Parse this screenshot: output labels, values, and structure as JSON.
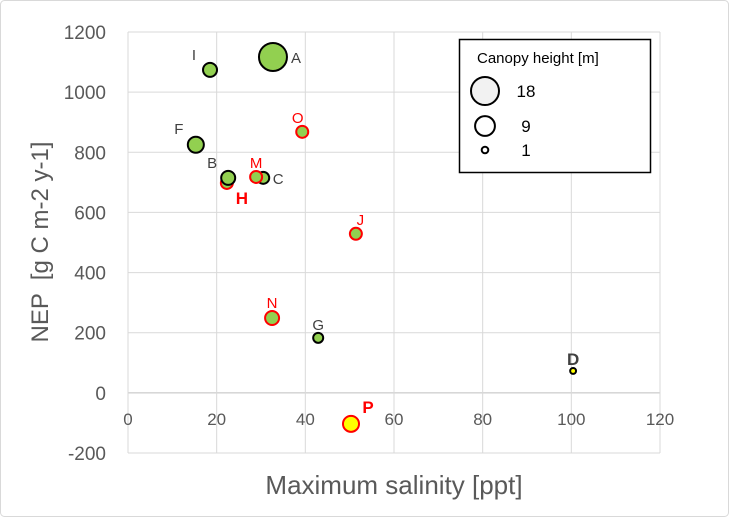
{
  "chart_data": {
    "type": "scatter",
    "subtype": "bubble",
    "xlabel": "Maximum salinity [ppt]",
    "ylabel": "NEP  [g C m-2 y-1]",
    "xlim": [
      0,
      120
    ],
    "ylim": [
      -200,
      1200
    ],
    "xticks": [
      0,
      20,
      40,
      60,
      80,
      100,
      120
    ],
    "yticks": [
      -200,
      0,
      200,
      400,
      600,
      800,
      1000,
      1200
    ],
    "grid": true,
    "legend": {
      "title": "Canopy height [m]",
      "placement": "top-right",
      "entries": [
        {
          "label": "18",
          "size": 18
        },
        {
          "label": "9",
          "size": 9
        },
        {
          "label": "1",
          "size": 1
        }
      ]
    },
    "points": [
      {
        "label": "A",
        "x": 32.7,
        "y": 1117,
        "size": 18,
        "fill": "#92d050",
        "stroke": "#000000",
        "label_color": "#404040",
        "bold": false,
        "lx": 1,
        "ly": 0
      },
      {
        "label": "I",
        "x": 18.5,
        "y": 1074,
        "size": 4.5,
        "fill": "#92d050",
        "stroke": "#000000",
        "label_color": "#404040",
        "bold": false,
        "lx": -1,
        "ly": -1
      },
      {
        "label": "F",
        "x": 15.3,
        "y": 825,
        "size": 5.9,
        "fill": "#92d050",
        "stroke": "#000000",
        "label_color": "#404040",
        "bold": false,
        "lx": -1,
        "ly": -1
      },
      {
        "label": "H",
        "x": 22.3,
        "y": 698,
        "size": 3.3,
        "fill": "#92d050",
        "stroke": "#ff0000",
        "label_color": "#ff0000",
        "bold": true,
        "lx": 1,
        "ly": 1
      },
      {
        "label": "B",
        "x": 22.6,
        "y": 715,
        "size": 4.5,
        "fill": "#92d050",
        "stroke": "#000000",
        "label_color": "#404040",
        "bold": false,
        "lx": -1,
        "ly": -1
      },
      {
        "label": "C",
        "x": 30.5,
        "y": 715,
        "size": 3.3,
        "fill": "#92d050",
        "stroke": "#000000",
        "label_color": "#404040",
        "bold": false,
        "lx": 1,
        "ly": 0
      },
      {
        "label": "M",
        "x": 28.9,
        "y": 718,
        "size": 3.3,
        "fill": "#92d050",
        "stroke": "#ff0000",
        "label_color": "#ff0000",
        "bold": false,
        "lx": 0,
        "ly": -1
      },
      {
        "label": "O",
        "x": 39.3,
        "y": 868,
        "size": 3.3,
        "fill": "#92d050",
        "stroke": "#ff0000",
        "label_color": "#ff0000",
        "bold": false,
        "lx": -0.3,
        "ly": -1
      },
      {
        "label": "J",
        "x": 51.4,
        "y": 529,
        "size": 3.3,
        "fill": "#92d050",
        "stroke": "#ff0000",
        "label_color": "#ff0000",
        "bold": false,
        "lx": 0.3,
        "ly": -1
      },
      {
        "label": "N",
        "x": 32.5,
        "y": 249,
        "size": 4.5,
        "fill": "#92d050",
        "stroke": "#ff0000",
        "label_color": "#ff0000",
        "bold": false,
        "lx": 0,
        "ly": -1
      },
      {
        "label": "G",
        "x": 42.9,
        "y": 183,
        "size": 2.3,
        "fill": "#92d050",
        "stroke": "#000000",
        "label_color": "#404040",
        "bold": false,
        "lx": 0,
        "ly": -1
      },
      {
        "label": "D",
        "x": 100.4,
        "y": 73,
        "size": 0.8,
        "fill": "#ffff00",
        "stroke": "#000000",
        "label_color": "#404040",
        "bold": true,
        "lx": 0,
        "ly": -1
      },
      {
        "label": "P",
        "x": 50.3,
        "y": -103,
        "size": 5.9,
        "fill": "#ffff00",
        "stroke": "#ff0000",
        "label_color": "#ff0000",
        "bold": true,
        "lx": 1,
        "ly": -1
      }
    ]
  }
}
